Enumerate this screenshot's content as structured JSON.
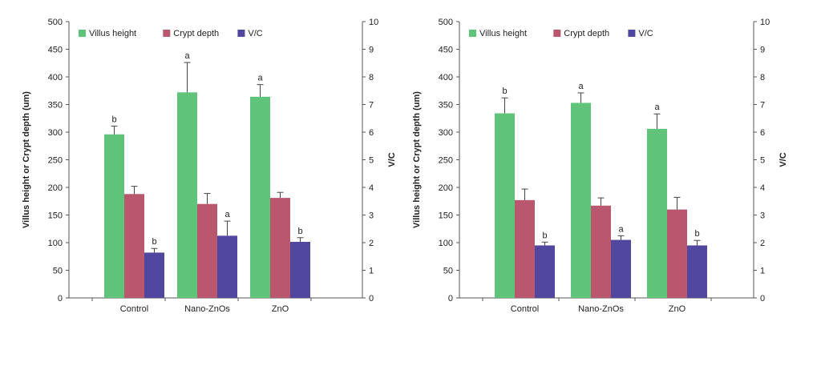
{
  "chart_data": [
    {
      "type": "bar",
      "categories": [
        "Control",
        "Nano-ZnOs",
        "ZnO"
      ],
      "ylabel": "Villus height or Crypt depth (um)",
      "y2label": "V/C",
      "ylim": [
        0,
        500
      ],
      "yticks": [
        0,
        50,
        100,
        150,
        200,
        250,
        300,
        350,
        400,
        450,
        500
      ],
      "y2lim": [
        0,
        10
      ],
      "y2ticks": [
        0,
        1,
        2,
        3,
        4,
        5,
        6,
        7,
        8,
        9,
        10
      ],
      "legend_position": "top-left",
      "grid": false,
      "series": [
        {
          "name": "Villus height",
          "axis": "left",
          "color": "#5fc47a",
          "values": [
            296,
            372,
            364
          ],
          "errors": [
            15,
            54,
            22
          ],
          "letters": [
            "b",
            "a",
            "a"
          ]
        },
        {
          "name": "Crypt depth",
          "axis": "left",
          "color": "#b8576e",
          "values": [
            188,
            170,
            181
          ],
          "errors": [
            14,
            19,
            10
          ],
          "letters": [
            "",
            "",
            ""
          ]
        },
        {
          "name": "V/C",
          "axis": "right",
          "color": "#52479e",
          "values": [
            1.64,
            2.25,
            2.03
          ],
          "errors": [
            0.15,
            0.53,
            0.15
          ],
          "letters": [
            "b",
            "a",
            "b"
          ]
        }
      ]
    },
    {
      "type": "bar",
      "categories": [
        "Control",
        "Nano-ZnOs",
        "ZnO"
      ],
      "ylabel": "Villus height or Crypt depth (um)",
      "y2label": "V/C",
      "ylim": [
        0,
        500
      ],
      "yticks": [
        0,
        50,
        100,
        150,
        200,
        250,
        300,
        350,
        400,
        450,
        500
      ],
      "y2lim": [
        0,
        10
      ],
      "y2ticks": [
        0,
        1,
        2,
        3,
        4,
        5,
        6,
        7,
        8,
        9,
        10
      ],
      "legend_position": "top-left",
      "grid": false,
      "series": [
        {
          "name": "Villus height",
          "axis": "left",
          "color": "#5fc47a",
          "values": [
            334,
            353,
            306
          ],
          "errors": [
            28,
            18,
            27
          ],
          "letters": [
            "b",
            "a",
            "a"
          ]
        },
        {
          "name": "Crypt depth",
          "axis": "left",
          "color": "#b8576e",
          "values": [
            177,
            167,
            160
          ],
          "errors": [
            20,
            14,
            22
          ],
          "letters": [
            "",
            "",
            ""
          ]
        },
        {
          "name": "V/C",
          "axis": "right",
          "color": "#52479e",
          "values": [
            1.9,
            2.1,
            1.9
          ],
          "errors": [
            0.12,
            0.15,
            0.18
          ],
          "letters": [
            "b",
            "a",
            "b"
          ]
        }
      ]
    }
  ]
}
